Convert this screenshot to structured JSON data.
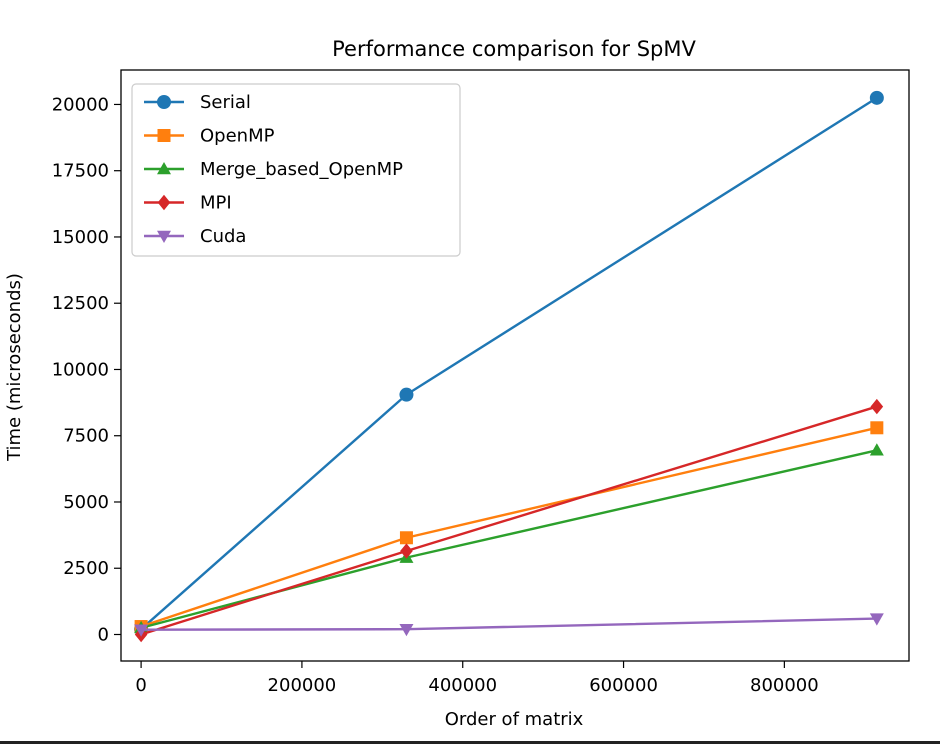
{
  "chart_data": {
    "type": "line",
    "title": "Performance comparison for SpMV",
    "xlabel": "Order of matrix",
    "ylabel": "Time (microseconds)",
    "xlim": [
      -25000,
      955000
    ],
    "ylim": [
      -1000,
      21300
    ],
    "xticks": [
      0,
      200000,
      400000,
      600000,
      800000
    ],
    "xtick_labels": [
      "0",
      "200000",
      "400000",
      "600000",
      "800000"
    ],
    "yticks": [
      0,
      2500,
      5000,
      7500,
      10000,
      12500,
      15000,
      17500,
      20000
    ],
    "ytick_labels": [
      "0",
      "2500",
      "5000",
      "7500",
      "10000",
      "12500",
      "15000",
      "17500",
      "20000"
    ],
    "grid": false,
    "legend_position": "top-left",
    "x": [
      0,
      330000,
      915000
    ],
    "series": [
      {
        "name": "Serial",
        "color": "#1f77b4",
        "marker": "circle",
        "values": [
          200,
          9050,
          20250
        ]
      },
      {
        "name": "OpenMP",
        "color": "#ff7f0e",
        "marker": "square",
        "values": [
          300,
          3650,
          7800
        ]
      },
      {
        "name": "Merge_based_OpenMP",
        "color": "#2ca02c",
        "marker": "triangle-up",
        "values": [
          250,
          2900,
          6950
        ]
      },
      {
        "name": "MPI",
        "color": "#d62728",
        "marker": "diamond",
        "values": [
          0,
          3150,
          8600
        ]
      },
      {
        "name": "Cuda",
        "color": "#9467bd",
        "marker": "triangle-down",
        "values": [
          180,
          200,
          600
        ]
      }
    ]
  }
}
